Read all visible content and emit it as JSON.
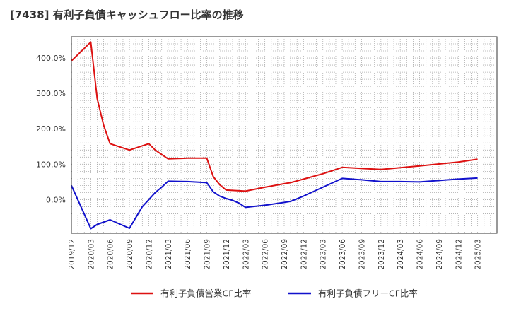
{
  "chart_data": {
    "type": "line",
    "title": "[7438]  有利子負債キャッシュフロー比率の推移",
    "xlabel": "",
    "ylabel": "",
    "ylim": [
      -95,
      460
    ],
    "y_ticks": [
      0,
      100,
      200,
      300,
      400
    ],
    "y_tick_labels": [
      "0.0%",
      "100.0%",
      "200.0%",
      "300.0%",
      "400.0%"
    ],
    "x_range": [
      0,
      66
    ],
    "x_tick_labels": [
      "2019/12",
      "2020/03",
      "2020/06",
      "2020/09",
      "2020/12",
      "2021/03",
      "2021/06",
      "2021/09",
      "2021/12",
      "2022/03",
      "2022/06",
      "2022/09",
      "2022/12",
      "2023/03",
      "2023/06",
      "2023/09",
      "2023/12",
      "2024/03",
      "2024/06",
      "2024/09",
      "2024/12",
      "2025/03"
    ],
    "grid": true,
    "legend_position": "bottom",
    "series": [
      {
        "name": "有利子負債営業CF比率",
        "color": "#dd1111",
        "points": [
          [
            0,
            392
          ],
          [
            3,
            445
          ],
          [
            4,
            285
          ],
          [
            5,
            210
          ],
          [
            6,
            158
          ],
          [
            9,
            140
          ],
          [
            12,
            158
          ],
          [
            13,
            140
          ],
          [
            15,
            115
          ],
          [
            18,
            117
          ],
          [
            21,
            117
          ],
          [
            22,
            65
          ],
          [
            23,
            42
          ],
          [
            24,
            27
          ],
          [
            27,
            24
          ],
          [
            30,
            35
          ],
          [
            33,
            45
          ],
          [
            34,
            48
          ],
          [
            36,
            58
          ],
          [
            37,
            63
          ],
          [
            39,
            73
          ],
          [
            41,
            85
          ],
          [
            42,
            91
          ],
          [
            48,
            85
          ],
          [
            54,
            95
          ],
          [
            60,
            106
          ],
          [
            63,
            114
          ]
        ]
      },
      {
        "name": "有利子負債フリーCF比率",
        "color": "#1111cc",
        "points": [
          [
            0,
            40
          ],
          [
            3,
            -82
          ],
          [
            4,
            -70
          ],
          [
            6,
            -57
          ],
          [
            9,
            -81
          ],
          [
            11,
            -20
          ],
          [
            12,
            0
          ],
          [
            13,
            20
          ],
          [
            14,
            35
          ],
          [
            15,
            52
          ],
          [
            18,
            51
          ],
          [
            21,
            48
          ],
          [
            22,
            22
          ],
          [
            23,
            10
          ],
          [
            24,
            3
          ],
          [
            25,
            -2
          ],
          [
            26,
            -10
          ],
          [
            27,
            -22
          ],
          [
            30,
            -16
          ],
          [
            33,
            -8
          ],
          [
            34,
            -5
          ],
          [
            36,
            10
          ],
          [
            39,
            35
          ],
          [
            42,
            60
          ],
          [
            45,
            56
          ],
          [
            48,
            51
          ],
          [
            51,
            51
          ],
          [
            54,
            50
          ],
          [
            57,
            54
          ],
          [
            60,
            58
          ],
          [
            63,
            61
          ]
        ]
      }
    ]
  }
}
